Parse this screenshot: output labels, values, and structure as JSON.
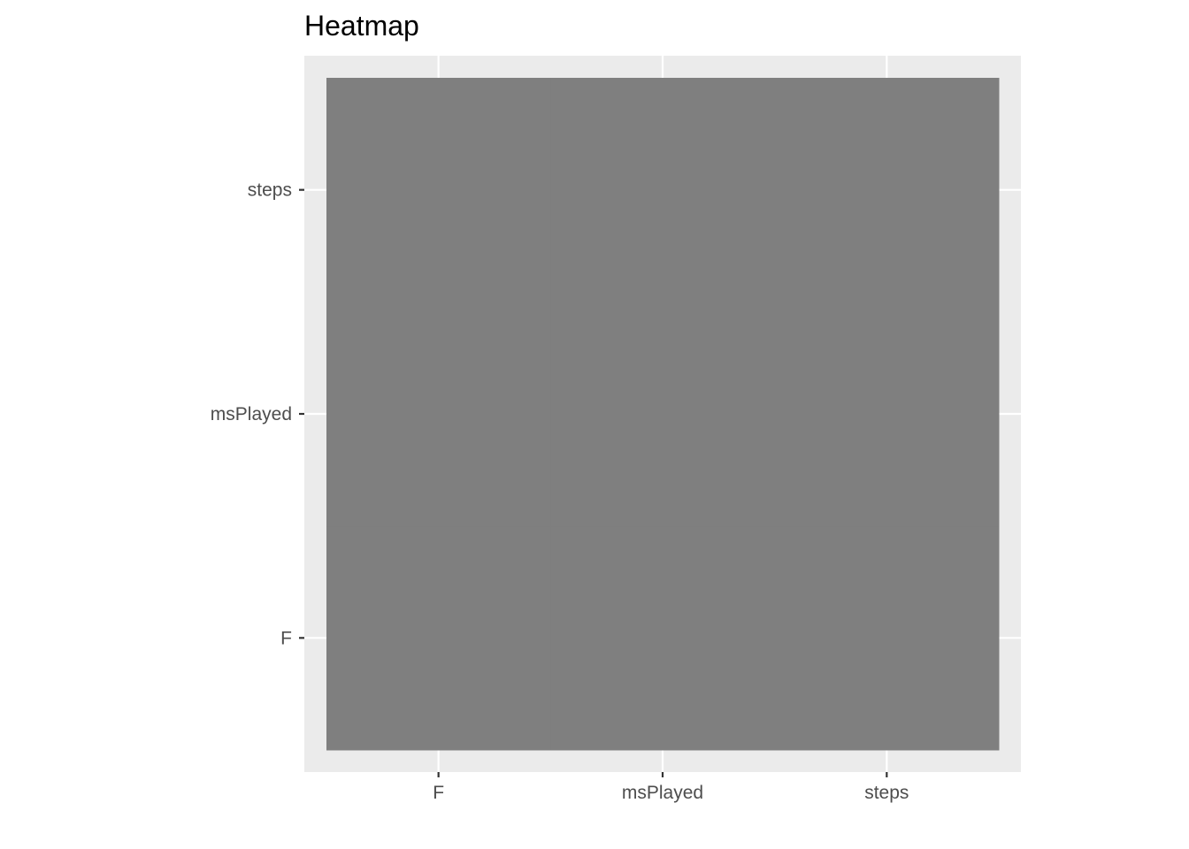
{
  "chart_data": {
    "type": "heatmap",
    "title": "Heatmap",
    "xlabel": "",
    "ylabel": "",
    "x_categories": [
      "F",
      "msPlayed",
      "steps"
    ],
    "y_categories": [
      "F",
      "msPlayed",
      "steps"
    ],
    "cells": [
      {
        "x": "F",
        "y": "F",
        "value": null
      },
      {
        "x": "F",
        "y": "msPlayed",
        "value": null
      },
      {
        "x": "F",
        "y": "steps",
        "value": null
      },
      {
        "x": "msPlayed",
        "y": "F",
        "value": null
      },
      {
        "x": "msPlayed",
        "y": "msPlayed",
        "value": null
      },
      {
        "x": "msPlayed",
        "y": "steps",
        "value": null
      },
      {
        "x": "steps",
        "y": "F",
        "value": null
      },
      {
        "x": "steps",
        "y": "msPlayed",
        "value": null
      },
      {
        "x": "steps",
        "y": "steps",
        "value": null
      }
    ],
    "cell_color": "#7f7f7f",
    "panel_background": "#ebebeb",
    "grid_color": "#ffffff",
    "tick_color": "#333333",
    "grid": true,
    "legend": "none"
  }
}
